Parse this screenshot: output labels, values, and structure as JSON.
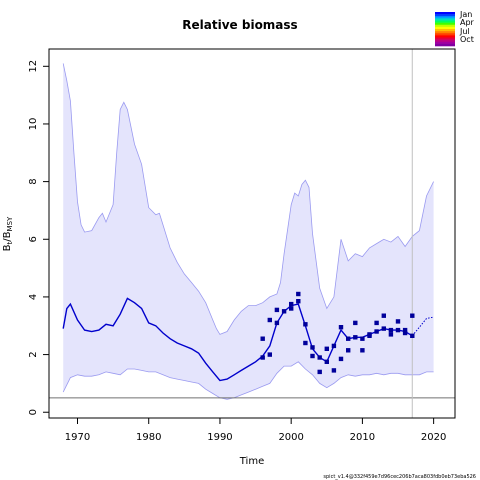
{
  "chart_data": {
    "type": "line",
    "title": "Relative biomass",
    "xlabel": "Time",
    "ylabel_main": "B",
    "ylabel_sub_t": "t",
    "ylabel_sep": "/B",
    "ylabel_sub_msy": "MSY",
    "xlim": [
      1966,
      2023
    ],
    "ylim": [
      -0.2,
      12.6
    ],
    "xticks": [
      1970,
      1980,
      1990,
      2000,
      2010,
      2020
    ],
    "yticks": [
      0,
      2,
      4,
      6,
      8,
      10,
      12
    ],
    "reference_line_y": 0.5,
    "vertical_line_x": 2017,
    "colors": {
      "band_fill": "#e4e4fc",
      "band_edge": "#9a9af0",
      "median_line": "#0000cc",
      "points": "#00009b",
      "reference_line": "#707070",
      "vertical_line": "#c0c0c0"
    },
    "series": [
      {
        "role": "upper_ci",
        "x": [
          1968.0,
          1968.5,
          1969.0,
          1969.5,
          1970.0,
          1970.5,
          1971.0,
          1972.0,
          1973.0,
          1973.5,
          1974.0,
          1975.0,
          1975.5,
          1976.0,
          1976.5,
          1977.0,
          1978.0,
          1979.0,
          1980.0,
          1981.0,
          1981.5,
          1982.0,
          1983.0,
          1984.0,
          1985.0,
          1986.0,
          1987.0,
          1988.0,
          1989.0,
          1989.5,
          1990.0,
          1991.0,
          1992.0,
          1993.0,
          1994.0,
          1995.0,
          1996.0,
          1997.0,
          1998.0,
          1998.5,
          1999.0,
          2000.0,
          2000.5,
          2001.0,
          2001.5,
          2002.0,
          2002.5,
          2003.0,
          2004.0,
          2005.0,
          2006.0,
          2007.0,
          2008.0,
          2009.0,
          2010.0,
          2011.0,
          2012.0,
          2013.0,
          2014.0,
          2015.0,
          2016.0,
          2017.0,
          2018.0,
          2019.0,
          2020.0
        ],
        "y": [
          12.1,
          11.5,
          10.8,
          9.0,
          7.3,
          6.5,
          6.25,
          6.3,
          6.75,
          6.9,
          6.6,
          7.2,
          9.0,
          10.5,
          10.75,
          10.5,
          9.3,
          8.6,
          7.1,
          6.85,
          6.9,
          6.5,
          5.7,
          5.2,
          4.8,
          4.5,
          4.2,
          3.8,
          3.2,
          2.9,
          2.7,
          2.8,
          3.2,
          3.5,
          3.7,
          3.7,
          3.8,
          4.0,
          4.1,
          4.5,
          5.5,
          7.2,
          7.6,
          7.5,
          7.9,
          8.05,
          7.8,
          6.2,
          4.3,
          3.6,
          4.0,
          6.0,
          5.25,
          5.5,
          5.4,
          5.7,
          5.85,
          6.0,
          5.9,
          6.1,
          5.75,
          6.1,
          6.3,
          7.5,
          8.0
        ]
      },
      {
        "role": "lower_ci",
        "x": [
          1968.0,
          1969.0,
          1970.0,
          1971.0,
          1972.0,
          1973.0,
          1974.0,
          1975.0,
          1976.0,
          1977.0,
          1978.0,
          1979.0,
          1980.0,
          1981.0,
          1982.0,
          1983.0,
          1984.0,
          1985.0,
          1986.0,
          1987.0,
          1988.0,
          1989.0,
          1990.0,
          1991.0,
          1992.0,
          1993.0,
          1994.0,
          1995.0,
          1996.0,
          1997.0,
          1998.0,
          1999.0,
          2000.0,
          2001.0,
          2002.0,
          2003.0,
          2004.0,
          2005.0,
          2006.0,
          2007.0,
          2008.0,
          2009.0,
          2010.0,
          2011.0,
          2012.0,
          2013.0,
          2014.0,
          2015.0,
          2016.0,
          2017.0,
          2018.0,
          2019.0,
          2020.0
        ],
        "y": [
          0.7,
          1.2,
          1.3,
          1.25,
          1.25,
          1.3,
          1.4,
          1.35,
          1.3,
          1.5,
          1.5,
          1.45,
          1.4,
          1.4,
          1.3,
          1.2,
          1.15,
          1.1,
          1.05,
          1.0,
          0.8,
          0.65,
          0.5,
          0.45,
          0.5,
          0.6,
          0.7,
          0.8,
          0.9,
          1.0,
          1.35,
          1.6,
          1.6,
          1.75,
          1.5,
          1.3,
          1.0,
          0.85,
          1.0,
          1.2,
          1.3,
          1.25,
          1.3,
          1.3,
          1.35,
          1.3,
          1.35,
          1.35,
          1.3,
          1.3,
          1.3,
          1.4,
          1.4
        ]
      },
      {
        "role": "median",
        "x": [
          1968.0,
          1968.5,
          1969.0,
          1970.0,
          1971.0,
          1972.0,
          1973.0,
          1974.0,
          1975.0,
          1976.0,
          1977.0,
          1978.0,
          1979.0,
          1980.0,
          1981.0,
          1982.0,
          1983.0,
          1984.0,
          1985.0,
          1986.0,
          1987.0,
          1988.0,
          1989.0,
          1990.0,
          1991.0,
          1992.0,
          1993.0,
          1994.0,
          1995.0,
          1996.0,
          1997.0,
          1998.0,
          1999.0,
          2000.0,
          2001.0,
          2002.0,
          2003.0,
          2004.0,
          2005.0,
          2006.0,
          2007.0,
          2008.0,
          2009.0,
          2010.0,
          2011.0,
          2012.0,
          2013.0,
          2014.0,
          2015.0,
          2016.0,
          2017.0
        ],
        "y": [
          2.9,
          3.6,
          3.75,
          3.2,
          2.85,
          2.8,
          2.85,
          3.05,
          3.0,
          3.4,
          3.95,
          3.8,
          3.6,
          3.1,
          3.0,
          2.75,
          2.55,
          2.4,
          2.3,
          2.2,
          2.05,
          1.7,
          1.4,
          1.1,
          1.15,
          1.3,
          1.45,
          1.6,
          1.75,
          1.95,
          2.3,
          3.1,
          3.5,
          3.7,
          3.75,
          3.0,
          2.2,
          1.9,
          1.75,
          2.3,
          2.85,
          2.55,
          2.6,
          2.6,
          2.7,
          2.8,
          2.9,
          2.85,
          2.85,
          2.8,
          2.65
        ]
      },
      {
        "role": "forecast",
        "x": [
          2017.0,
          2018.0,
          2019.0,
          2020.0
        ],
        "y": [
          2.65,
          2.95,
          3.25,
          3.3
        ]
      },
      {
        "role": "observations",
        "x": [
          1996.0,
          1996.0,
          1997.0,
          1997.0,
          1998.0,
          1998.0,
          1999.0,
          2000.0,
          2000.0,
          2001.0,
          2001.0,
          2002.0,
          2002.0,
          2003.0,
          2003.0,
          2004.0,
          2004.0,
          2005.0,
          2005.0,
          2006.0,
          2006.0,
          2007.0,
          2007.0,
          2008.0,
          2008.0,
          2009.0,
          2009.0,
          2010.0,
          2010.0,
          2011.0,
          2011.0,
          2012.0,
          2012.0,
          2013.0,
          2013.0,
          2014.0,
          2014.0,
          2015.0,
          2015.0,
          2016.0,
          2016.0,
          2017.0,
          2017.0
        ],
        "y": [
          2.55,
          1.9,
          3.2,
          2.0,
          3.55,
          3.1,
          3.5,
          3.75,
          3.6,
          4.1,
          3.85,
          3.05,
          2.4,
          2.25,
          1.95,
          1.4,
          1.9,
          2.2,
          1.75,
          1.45,
          2.3,
          2.95,
          1.85,
          2.55,
          2.15,
          3.1,
          2.6,
          2.55,
          2.15,
          2.7,
          2.65,
          3.1,
          2.8,
          3.35,
          2.9,
          2.85,
          2.7,
          3.15,
          2.85,
          2.85,
          2.75,
          2.65,
          3.35
        ]
      }
    ],
    "legend": {
      "position": "top-right",
      "labels": [
        "Jan",
        "Apr",
        "Jul",
        "Oct"
      ],
      "gradient_colors": [
        "#0000ff",
        "#0040ff",
        "#00a0ff",
        "#00e0c0",
        "#00ff60",
        "#40ff00",
        "#c0ff00",
        "#ffff00",
        "#ffc000",
        "#ff8000",
        "#ff4000",
        "#ff0000",
        "#e00040",
        "#c00080",
        "#a000a0",
        "#8000a0"
      ]
    },
    "footnote": "spict_v1.4@332f459e7d96cec206b7aca803fdb0eb73eba526"
  }
}
